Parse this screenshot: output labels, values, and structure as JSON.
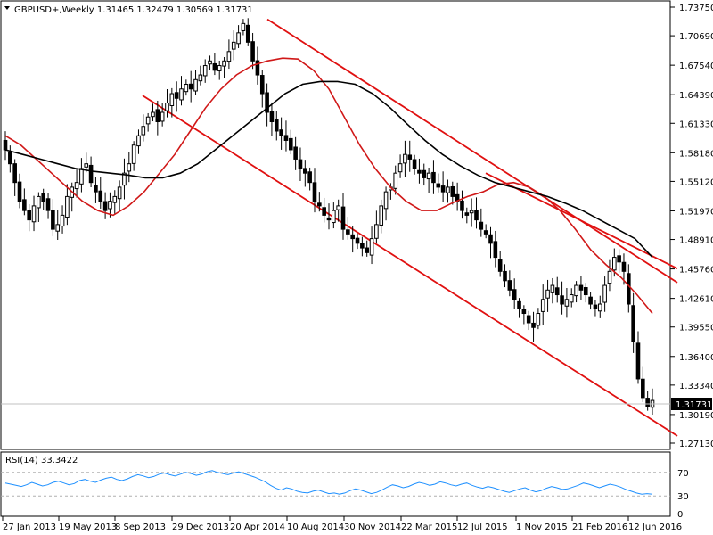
{
  "header": {
    "symbol_line": "GBPUSD+,Weekly  1.31465 1.32479 1.30569 1.31731",
    "menu_arrow": "triangle-down-icon"
  },
  "price_axis": {
    "ticks": [
      "1.73750",
      "1.70690",
      "1.67540",
      "1.64390",
      "1.61330",
      "1.58180",
      "1.55120",
      "1.51970",
      "1.48910",
      "1.45760",
      "1.42610",
      "1.39550",
      "1.36400",
      "1.33340",
      "1.30190",
      "1.27130"
    ],
    "current_price": "1.31731"
  },
  "rsi": {
    "label": "RSI(14) 33.3422",
    "levels": [
      "70",
      "30",
      "0"
    ],
    "series": [
      52,
      50,
      48,
      46,
      49,
      53,
      50,
      47,
      49,
      53,
      55,
      52,
      49,
      51,
      56,
      58,
      55,
      53,
      57,
      60,
      62,
      58,
      56,
      59,
      63,
      66,
      64,
      61,
      63,
      67,
      69,
      66,
      64,
      67,
      70,
      68,
      65,
      67,
      71,
      73,
      70,
      68,
      66,
      69,
      71,
      68,
      65,
      62,
      58,
      54,
      48,
      43,
      40,
      44,
      42,
      38,
      36,
      35,
      38,
      40,
      37,
      34,
      35,
      33,
      35,
      39,
      42,
      40,
      37,
      34,
      36,
      40,
      45,
      49,
      47,
      44,
      46,
      50,
      53,
      51,
      48,
      50,
      54,
      52,
      49,
      47,
      50,
      52,
      48,
      45,
      43,
      46,
      44,
      41,
      38,
      36,
      39,
      42,
      44,
      40,
      37,
      39,
      43,
      46,
      44,
      41,
      42,
      45,
      48,
      52,
      50,
      47,
      44,
      47,
      50,
      48,
      45,
      41,
      38,
      35,
      33,
      34,
      33
    ]
  },
  "time_axis": {
    "labels": [
      "27 Jan 2013",
      "19 May 2013",
      "8 Sep 2013",
      "29 Dec 2013",
      "20 Apr 2014",
      "10 Aug 2014",
      "30 Nov 2014",
      "22 Mar 2015",
      "12 Jul 2015",
      "1 Nov 2015",
      "21 Feb 2016",
      "12 Jun 2016"
    ]
  },
  "colors": {
    "candle": "#000000",
    "ma_fast": "#d01818",
    "ma_slow": "#000000",
    "channel": "#e01010",
    "rsi_line": "#1e90ff",
    "level_line": "#b0b0b0"
  },
  "chart_data": {
    "type": "candlestick",
    "title": "GBPUSD+,Weekly",
    "ohlc_last": {
      "open": 1.31465,
      "high": 1.32479,
      "low": 1.30569,
      "close": 1.31731
    },
    "ylim": [
      1.2713,
      1.7375
    ],
    "close_series": [
      1.585,
      1.57,
      1.55,
      1.53,
      1.52,
      1.51,
      1.525,
      1.535,
      1.53,
      1.52,
      1.5,
      1.505,
      1.515,
      1.535,
      1.545,
      1.55,
      1.565,
      1.57,
      1.55,
      1.54,
      1.53,
      1.52,
      1.53,
      1.535,
      1.545,
      1.56,
      1.57,
      1.59,
      1.6,
      1.61,
      1.62,
      1.625,
      1.615,
      1.625,
      1.635,
      1.645,
      1.64,
      1.65,
      1.655,
      1.65,
      1.66,
      1.665,
      1.675,
      1.68,
      1.67,
      1.675,
      1.68,
      1.69,
      1.7,
      1.71,
      1.72,
      1.7,
      1.68,
      1.665,
      1.645,
      1.625,
      1.615,
      1.605,
      1.6,
      1.595,
      1.585,
      1.575,
      1.565,
      1.56,
      1.55,
      1.53,
      1.525,
      1.515,
      1.51,
      1.52,
      1.525,
      1.5,
      1.495,
      1.49,
      1.485,
      1.48,
      1.475,
      1.49,
      1.505,
      1.525,
      1.54,
      1.545,
      1.56,
      1.57,
      1.58,
      1.575,
      1.565,
      1.56,
      1.555,
      1.56,
      1.55,
      1.545,
      1.54,
      1.545,
      1.535,
      1.53,
      1.52,
      1.515,
      1.52,
      1.51,
      1.5,
      1.495,
      1.485,
      1.47,
      1.455,
      1.445,
      1.435,
      1.425,
      1.415,
      1.41,
      1.4,
      1.395,
      1.41,
      1.425,
      1.435,
      1.44,
      1.43,
      1.42,
      1.425,
      1.43,
      1.44,
      1.435,
      1.43,
      1.42,
      1.415,
      1.42,
      1.44,
      1.455,
      1.47,
      1.465,
      1.455,
      1.42,
      1.38,
      1.34,
      1.32,
      1.31,
      1.317
    ],
    "moving_averages": [
      {
        "values": [
          1.6,
          1.59,
          1.575,
          1.56,
          1.545,
          1.53,
          1.52,
          1.515,
          1.525,
          1.54,
          1.56,
          1.58,
          1.605,
          1.63,
          1.65,
          1.665,
          1.675,
          1.68,
          1.683,
          1.682,
          1.67,
          1.65,
          1.62,
          1.59,
          1.565,
          1.545,
          1.53,
          1.52,
          1.52,
          1.528,
          1.535,
          1.54,
          1.548,
          1.55,
          1.545,
          1.535,
          1.52,
          1.5,
          1.478,
          1.462,
          1.448,
          1.43,
          1.41
        ]
      },
      {
        "values": [
          1.585,
          1.58,
          1.575,
          1.57,
          1.565,
          1.562,
          1.56,
          1.558,
          1.555,
          1.555,
          1.56,
          1.57,
          1.585,
          1.6,
          1.615,
          1.63,
          1.645,
          1.655,
          1.658,
          1.658,
          1.655,
          1.645,
          1.63,
          1.612,
          1.595,
          1.58,
          1.568,
          1.558,
          1.55,
          1.545,
          1.54,
          1.535,
          1.528,
          1.52,
          1.51,
          1.5,
          1.49,
          1.47
        ]
      }
    ],
    "channel_lines": [
      {
        "from": [
          "20 Apr 2014",
          1.7245
        ],
        "to": [
          "12 Jun 2016",
          1.443
        ]
      },
      {
        "from": [
          "8 Sep 2013",
          1.643
        ],
        "to": [
          "12 Jun 2016",
          1.279
        ]
      },
      {
        "from": [
          "12 Jul 2015",
          1.56
        ],
        "to": [
          "12 Jun 2016",
          1.458
        ]
      }
    ]
  }
}
